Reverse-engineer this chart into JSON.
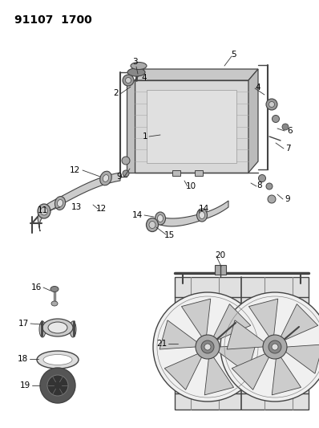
{
  "title": "91107 1700",
  "background_color": "#ffffff",
  "title_fontsize": 10,
  "title_fontweight": "bold",
  "fig_width": 3.98,
  "fig_height": 5.33,
  "dpi": 100,
  "line_color": "#444444",
  "label_fontsize": 7.5
}
